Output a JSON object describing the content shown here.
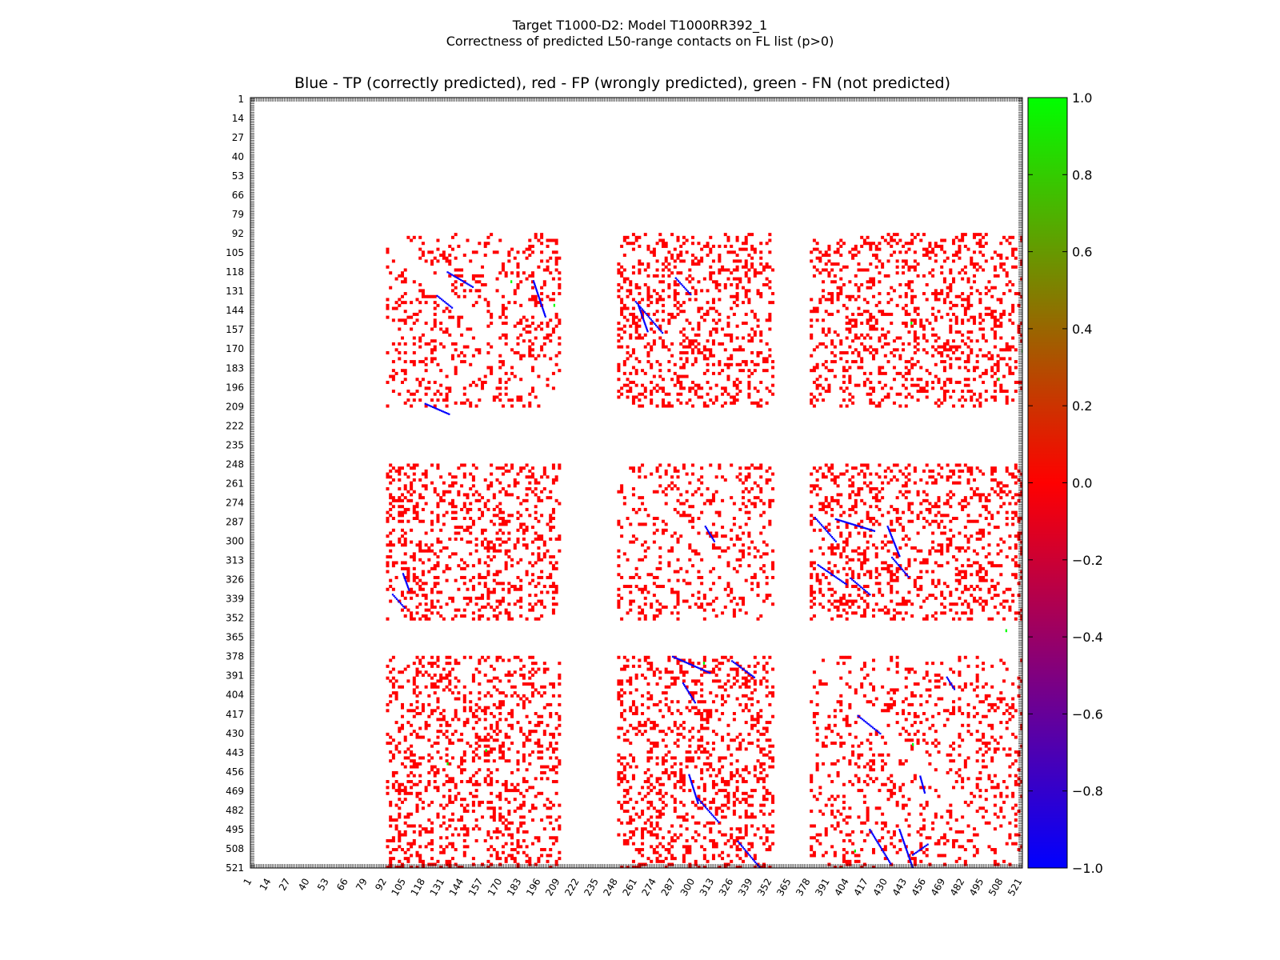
{
  "figure": {
    "suptitle_line1": "Target T1000-D2: Model T1000RR392_1",
    "suptitle_line2": "Correctness of predicted L50-range contacts on FL list (p>0)"
  },
  "chart_data": {
    "type": "heatmap",
    "title": "Blue - TP (correctly predicted), red - FP (wrongly predicted), green - FN (not predicted)",
    "xlabel": "",
    "ylabel": "",
    "xlim": [
      1,
      521
    ],
    "ylim": [
      1,
      521
    ],
    "tick_labels": [
      "1",
      "14",
      "27",
      "40",
      "53",
      "66",
      "79",
      "92",
      "105",
      "118",
      "131",
      "144",
      "157",
      "170",
      "183",
      "196",
      "209",
      "222",
      "235",
      "248",
      "261",
      "274",
      "287",
      "300",
      "313",
      "326",
      "339",
      "352",
      "365",
      "378",
      "391",
      "404",
      "417",
      "430",
      "443",
      "456",
      "469",
      "482",
      "495",
      "508",
      "521"
    ],
    "colorbar": {
      "min": -1.0,
      "max": 1.0,
      "ticks": [
        "1.0",
        "0.8",
        "0.6",
        "0.4",
        "0.2",
        "0.0",
        "−0.2",
        "−0.4",
        "−0.6",
        "−0.8",
        "−1.0"
      ],
      "colors": [
        "#0000ff",
        "#ff0000",
        "#00ff00"
      ]
    },
    "legend": {
      "tp": {
        "value": -1.0,
        "color": "#0000ff"
      },
      "fp": {
        "value": 0.0,
        "color": "#ff0000"
      },
      "fn": {
        "value": 1.0,
        "color": "#00ff00"
      }
    },
    "domain_blocks": [
      [
        92,
        209
      ],
      [
        248,
        352
      ],
      [
        378,
        521
      ]
    ],
    "tp_segments": [
      [
        118,
        207,
        134,
        214
      ],
      [
        133,
        118,
        150,
        128
      ],
      [
        103,
        322,
        107,
        333
      ],
      [
        96,
        336,
        104,
        345
      ],
      [
        126,
        134,
        136,
        142
      ],
      [
        191,
        124,
        199,
        148
      ],
      [
        260,
        138,
        278,
        159
      ],
      [
        287,
        122,
        297,
        133
      ],
      [
        262,
        141,
        268,
        158
      ],
      [
        395,
        285,
        421,
        293
      ],
      [
        307,
        290,
        313,
        300
      ],
      [
        292,
        396,
        300,
        409
      ],
      [
        405,
        325,
        418,
        336
      ],
      [
        438,
        495,
        447,
        521
      ],
      [
        418,
        495,
        432,
        518
      ],
      [
        452,
        459,
        455,
        470
      ],
      [
        447,
        512,
        457,
        505
      ],
      [
        470,
        392,
        475,
        400
      ],
      [
        381,
        284,
        395,
        300
      ],
      [
        383,
        316,
        402,
        329
      ],
      [
        410,
        418,
        425,
        430
      ],
      [
        430,
        290,
        438,
        310
      ],
      [
        433,
        311,
        444,
        324
      ],
      [
        285,
        378,
        310,
        389
      ],
      [
        325,
        381,
        340,
        392
      ],
      [
        302,
        474,
        316,
        490
      ],
      [
        296,
        458,
        302,
        477
      ],
      [
        329,
        503,
        344,
        521
      ]
    ],
    "fn_cells": [
      [
        205,
        140
      ],
      [
        176,
        124
      ],
      [
        447,
        437
      ],
      [
        446,
        152
      ],
      [
        408,
        509
      ],
      [
        399,
        521
      ],
      [
        306,
        382
      ],
      [
        133,
        450
      ],
      [
        159,
        441
      ],
      [
        505,
        190
      ],
      [
        521,
        171
      ],
      [
        510,
        360
      ]
    ]
  }
}
